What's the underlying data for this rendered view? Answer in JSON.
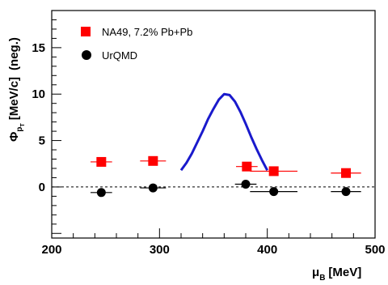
{
  "chart_data": {
    "type": "scatter",
    "xlabel": {
      "symbol": "μ",
      "subscript": "B",
      "unit": "[MeV]"
    },
    "ylabel": {
      "symbol": "Φ",
      "subscript": "p",
      "subsubscript": "T",
      "unit": "[MeV/c]",
      "note": "(neg.)"
    },
    "xlim": [
      200,
      500
    ],
    "ylim": [
      -5.5,
      19
    ],
    "x_ticks": [
      200,
      300,
      400,
      500
    ],
    "y_ticks": [
      0,
      5,
      10,
      15
    ],
    "x_tick_labels": [
      "200",
      "300",
      "400",
      "500"
    ],
    "y_tick_labels": [
      "0",
      "5",
      "10",
      "15"
    ],
    "zero_line": {
      "y": 0,
      "style": "dashed"
    },
    "legend_position": "top-left",
    "series": [
      {
        "name": "NA49, 7.2% Pb+Pb",
        "marker": "square",
        "color": "#ff0000",
        "points": [
          {
            "x": 246,
            "y": 2.7,
            "xerr": 10
          },
          {
            "x": 294,
            "y": 2.8,
            "xerr": 12
          },
          {
            "x": 381,
            "y": 2.2,
            "xerr": 10
          },
          {
            "x": 406,
            "y": 1.7,
            "xerr": 22
          },
          {
            "x": 473,
            "y": 1.5,
            "xerr": 14
          }
        ]
      },
      {
        "name": "UrQMD",
        "marker": "circle",
        "color": "#000000",
        "points": [
          {
            "x": 246,
            "y": -0.6,
            "xerr": 10
          },
          {
            "x": 294,
            "y": -0.1,
            "xerr": 12
          },
          {
            "x": 380,
            "y": 0.3,
            "xerr": 10
          },
          {
            "x": 406,
            "y": -0.5,
            "xerr": 22
          },
          {
            "x": 473,
            "y": -0.5,
            "xerr": 14
          }
        ]
      }
    ],
    "curve": {
      "color": "#1a1acc",
      "x": [
        320,
        325,
        330,
        335,
        340,
        345,
        350,
        355,
        360,
        365,
        370,
        375,
        380,
        385,
        390,
        395,
        400
      ],
      "y": [
        1.8,
        2.6,
        3.6,
        4.8,
        6.0,
        7.3,
        8.4,
        9.4,
        10.0,
        9.9,
        9.2,
        8.1,
        6.8,
        5.4,
        4.1,
        2.9,
        1.8
      ]
    }
  }
}
